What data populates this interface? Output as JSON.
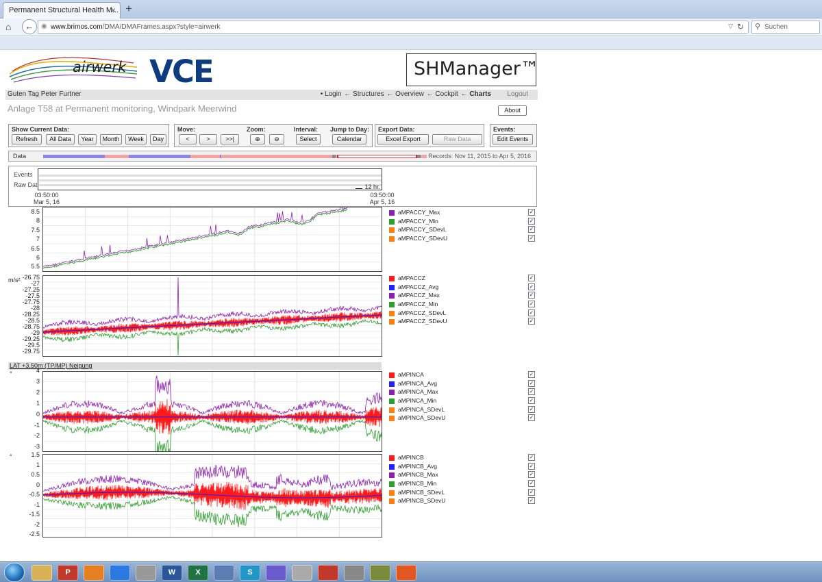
{
  "browser": {
    "tab_title": "Permanent Structural Health M...",
    "tab_close": "×",
    "new_tab": "+",
    "url_host": "www.brimos.com",
    "url_path": "/DMA/DMAFrames.aspx?style=airwerk",
    "search_placeholder": "Suchen"
  },
  "header": {
    "airwerk_logo": "airwerk",
    "vce_logo": "VCE",
    "shm_logo": "SHManager™",
    "greeting": "Guten Tag Peter Furtner",
    "nav": [
      "• Login",
      "← Structures",
      "← Overview",
      "← Cockpit",
      "← Charts"
    ],
    "logout": "Logout",
    "site_title": "Anlage T58 at Permanent monitoring, Windpark Meerwind",
    "about": "About"
  },
  "controls": {
    "show_current_label": "Show Current Data:",
    "refresh": "Refresh",
    "all_data": "All Data",
    "year": "Year",
    "month": "Month",
    "week": "Week",
    "day": "Day",
    "move_label": "Move:",
    "move_prev": "<",
    "move_next": ">",
    "move_last": ">>|",
    "zoom_label": "Zoom:",
    "zoom_in": "⊕",
    "zoom_out": "⊖",
    "interval_label": "Interval:",
    "select": "Select",
    "jump_label": "Jump to Day:",
    "calendar": "Calendar",
    "export_label": "Export Data:",
    "excel_export": "Excel Export",
    "raw_data": "Raw Data",
    "events_label": "Events:",
    "edit_events": "Edit Events"
  },
  "databar": {
    "label": "Data",
    "records": "Records: Nov 11, 2015 to Apr 5, 2016"
  },
  "overview": {
    "events_label": "Events",
    "raw_label": "Raw Data",
    "scale_label": "12 hr.",
    "start_time": "03:50:00",
    "start_date": "Mar 5, 16",
    "end_time": "03:50:00",
    "end_date": "Apr 5, 16"
  },
  "section_header": "LAT +3.50m (TP/MP)    Neigung",
  "check_mark": "✓",
  "charts": [
    {
      "unit": "",
      "yticks": [
        "8.5",
        "8",
        "7.5",
        "7",
        "6.5",
        "6",
        "5.5"
      ],
      "legend": [
        {
          "name": "aMPACCY_Max",
          "color": "#8e1fb3"
        },
        {
          "name": "aMPACCY_Min",
          "color": "#2ca02c"
        },
        {
          "name": "aMPACCY_SDevL",
          "color": "#ff7f0e"
        },
        {
          "name": "aMPACCY_SDevU",
          "color": "#ff7f0e"
        }
      ]
    },
    {
      "unit": "m/s²",
      "yticks": [
        "-26.75",
        "-27",
        "-27.25",
        "-27.5",
        "-27.75",
        "-28",
        "-28.25",
        "-28.5",
        "-28.75",
        "-29",
        "-29.25",
        "-29.5",
        "-29.75"
      ],
      "legend": [
        {
          "name": "aMPACCZ",
          "color": "#ff1a1a"
        },
        {
          "name": "aMPACCZ_Avg",
          "color": "#1f1fff"
        },
        {
          "name": "aMPACCZ_Max",
          "color": "#8e1fb3"
        },
        {
          "name": "aMPACCZ_Min",
          "color": "#2ca02c"
        },
        {
          "name": "aMPACCZ_SDevL",
          "color": "#ff7f0e"
        },
        {
          "name": "aMPACCZ_SDevU",
          "color": "#ff7f0e"
        }
      ]
    },
    {
      "unit": "°",
      "yticks": [
        "4",
        "3",
        "2",
        "1",
        "0",
        "-1",
        "-2",
        "-3"
      ],
      "legend": [
        {
          "name": "aMPINCA",
          "color": "#ff1a1a"
        },
        {
          "name": "aMPINCA_Avg",
          "color": "#1f1fff"
        },
        {
          "name": "aMPINCA_Max",
          "color": "#8e1fb3"
        },
        {
          "name": "aMPINCA_Min",
          "color": "#2ca02c"
        },
        {
          "name": "aMPINCA_SDevL",
          "color": "#ff7f0e"
        },
        {
          "name": "aMPINCA_SDevU",
          "color": "#ff7f0e"
        }
      ]
    },
    {
      "unit": "°",
      "yticks": [
        "1.5",
        "1",
        "0.5",
        "0",
        "-0.5",
        "-1",
        "-1.5",
        "-2",
        "-2.5"
      ],
      "legend": [
        {
          "name": "aMPINCB",
          "color": "#ff1a1a"
        },
        {
          "name": "aMPINCB_Avg",
          "color": "#1f1fff"
        },
        {
          "name": "aMPINCB_Max",
          "color": "#8e1fb3"
        },
        {
          "name": "aMPINCB_Min",
          "color": "#2ca02c"
        },
        {
          "name": "aMPINCB_SDevL",
          "color": "#ff7f0e"
        },
        {
          "name": "aMPINCB_SDevU",
          "color": "#ff7f0e"
        }
      ]
    }
  ],
  "taskbar_items": [
    "folder",
    "P",
    "media",
    "IE",
    "app",
    "W",
    "X",
    "app",
    "S",
    "app",
    "app",
    "pdf",
    "app",
    "app",
    "firefox"
  ]
}
